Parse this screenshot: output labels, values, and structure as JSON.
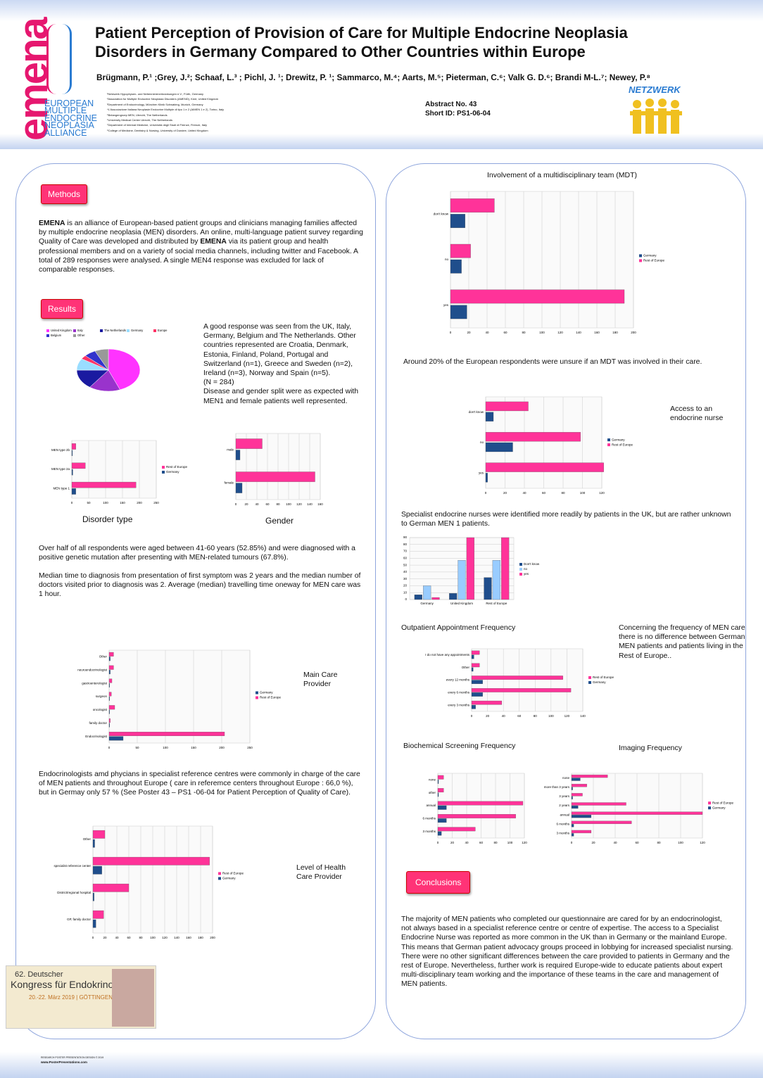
{
  "header": {
    "logo": "emena",
    "alliance": [
      "EUROPEAN",
      "MULTIPLE",
      "ENDOCRINE",
      "NEOPLASIA",
      "ALLIANCE"
    ],
    "title": [
      "Patient Perception of Provision of Care for Multiple Endocrine Neoplasia",
      "Disorders in Germany Compared to Other Countries within Europe"
    ],
    "authors": "Brügmann, P.¹ ;Grey, J.²; Schaaf, L.³ ; Pichl, J. ¹; Drewitz, P. ¹; Sammarco, M.⁴; Aarts, M.⁵; Pieterman, C.⁶; Valk G. D.⁶;  Brandi M-L.⁷; Newey, P.⁸",
    "affiliations": [
      "¹Netzwerk Hypophysen- und Nebennierenerkrankungen e.V., Fürth, Germany",
      "²Association for Multiple Endocrine Neoplasia Disorders (AMEND), Kent, United Kingdom",
      "³Department of Endocrinology, München Klinik Schwabing, Munich, Germany",
      "⁴L'Associazione Italiana Neoplasie Endocrine Multiple di tipo 1 e 2 (AIMEN 1 e 2), Torino, Italy",
      "⁵Belangengroep MEN, Utrecht, The Netherlands",
      "⁶University Medical Center Utrecht, The Netherlands",
      "⁷Department of Internal Medicine, Università degli Studi di Firenze, Firenze, Italy",
      "⁸College of Medicine, Dentistry & Nursing, University of Dundee, United Kingdom"
    ],
    "abstract": "Abstract No. 43",
    "short_id": "Short ID:   PS1-06-04",
    "netzwerk": "NETZWERK"
  },
  "methods": {
    "heading": "Methods",
    "text": [
      "EMENA",
      " is an alliance of European-based patient groups and clinicians managing families affected by multiple endocrine neoplasia (MEN) disorders.  An online, multi-language patient survey regarding Quality of Care was developed and distributed by ",
      "EMENA",
      " via its patient group and health professional members and on a variety of social media channels, including twitter and Facebook.  A total of 289 responses were analysed.  A single MEN4 response was excluded for lack of comparable responses."
    ]
  },
  "results": {
    "heading": "Results",
    "response_text": [
      "A good response  was seen from the UK, Italy, Germany, Belgium and The Netherlands.  Other countries represented are Croatia, Denmark, Estonia, Finland, Poland, Portugal and Switzerland (n=1), Greece and Sweden (n=2), Ireland (n=3), Norway and Spain (n=5).",
      "(N = 284)",
      "Disease and gender split were as expected with MEN1 and female patients well represented."
    ],
    "age_text": "Over half of all respondents were aged between 41-60 years (52.85%) and were diagnosed with a positive genetic mutation after presenting with MEN-related tumours (67.8%).",
    "diagnosis_text": "Median time to diagnosis from presentation of first symptom was 2 years and the median number of doctors visited prior to diagnosis was 2.  Average (median) travelling time oneway for MEN care was 1 hour.",
    "provider_text": "Endocrinologists amd phycians in  specialist reference centres were commonly in charge of the care of MEN patients and throughout Europe ( care in referemce centers throughout Europe  : 66,0 %), but in Germay only 57 %  (See Poster 43 – PS1 -06-04 for Patient Perception of Quality of Care).",
    "mdt_text": "Around 20% of  the European respondents were unsure if an MDT was involved in their care.",
    "nurse_text": "Specialist endocrine nurses were identified more readily by patients in the UK, but are rather unknown to German MEN 1 patients.",
    "frequency_text": "Concerning the frequency of MEN care  there is no difference between German MEN patients and patients living in the Rest of Europe.."
  },
  "charts": {
    "pie": {
      "type": "pie",
      "categories": [
        "United Kingdom",
        "Italy",
        "The Netherlands",
        "Germany",
        "Europe",
        "Belgium",
        "Other"
      ],
      "values": [
        44,
        16,
        15,
        9,
        3,
        6,
        7
      ],
      "colors": [
        "#ff33ff",
        "#9933cc",
        "#1a1aa0",
        "#99ddff",
        "#ff3366",
        "#3333cc",
        "#999999"
      ]
    },
    "disorder": {
      "type": "hbar",
      "title": "Disorder type",
      "categories": [
        "MEN type 1",
        "MEN type 2a",
        "MEN type 2b"
      ],
      "series": [
        {
          "name": "Rest of Europe",
          "color": "#ff3399",
          "values": [
            190,
            40,
            12
          ]
        },
        {
          "name": "Germany",
          "color": "#1f4e8c",
          "values": [
            12,
            3,
            2
          ]
        }
      ],
      "xlim": [
        0,
        250
      ],
      "xticks": [
        0,
        50,
        100,
        150,
        200,
        250
      ]
    },
    "gender": {
      "type": "hbar",
      "title": "Gender",
      "categories": [
        "female",
        "male"
      ],
      "series": [
        {
          "name": "Rest of Europe",
          "color": "#ff3399",
          "values": [
            150,
            50
          ]
        },
        {
          "name": "Germany",
          "color": "#1f4e8c",
          "values": [
            12,
            8
          ]
        }
      ],
      "xlim": [
        0,
        160
      ],
      "xticks": [
        0,
        20,
        40,
        60,
        80,
        100,
        120,
        140,
        160
      ]
    },
    "main_care": {
      "type": "hbar",
      "title": "Main Care Provider",
      "categories": [
        "Endocrinologist",
        "family doctor",
        "oncologist",
        "surgeon",
        "gastroenterologist",
        "neuroendocrinologist",
        "Other"
      ],
      "series": [
        {
          "name": "Germany",
          "color": "#1f4e8c",
          "values": [
            25,
            1,
            1,
            1,
            1,
            2,
            2
          ]
        },
        {
          "name": "Rest of Europe",
          "color": "#ff3399",
          "values": [
            205,
            2,
            10,
            4,
            5,
            8,
            8
          ]
        }
      ],
      "xlim": [
        0,
        250
      ],
      "xticks": [
        0,
        50,
        100,
        150,
        200,
        250
      ]
    },
    "level": {
      "type": "hbar",
      "title": "Level of Health Care Provider",
      "categories": [
        "GP, family doctor",
        "District/regional hospital",
        "specialist reference center",
        "Other"
      ],
      "series": [
        {
          "name": "Rest of Europe",
          "color": "#ff3399",
          "values": [
            18,
            60,
            195,
            20
          ]
        },
        {
          "name": "Germany",
          "color": "#1f4e8c",
          "values": [
            5,
            2,
            15,
            3
          ]
        }
      ],
      "xlim": [
        0,
        200
      ],
      "xticks": [
        0,
        20,
        40,
        60,
        80,
        100,
        120,
        140,
        160,
        180,
        200
      ]
    },
    "mdt": {
      "type": "hbar",
      "title": "Involvement of a multidisciplinary team (MDT)",
      "categories": [
        "yes",
        "no",
        "don't know"
      ],
      "series": [
        {
          "name": "Germany",
          "color": "#1f4e8c",
          "values": [
            18,
            12,
            16
          ]
        },
        {
          "name": "Rest of Europe",
          "color": "#ff3399",
          "values": [
            190,
            22,
            48
          ]
        }
      ],
      "xlim": [
        0,
        200
      ],
      "xticks": [
        0,
        20,
        40,
        60,
        80,
        100,
        120,
        140,
        160,
        180,
        200
      ]
    },
    "nurse": {
      "type": "hbar",
      "title": "Access to an endocrine nurse",
      "categories": [
        "yes",
        "no",
        "don't know"
      ],
      "series": [
        {
          "name": "Germany",
          "color": "#1f4e8c",
          "values": [
            2,
            28,
            8
          ]
        },
        {
          "name": "Rest of Europe",
          "color": "#ff3399",
          "values": [
            122,
            98,
            44
          ]
        }
      ],
      "xlim": [
        0,
        120
      ],
      "xticks": [
        0,
        20,
        40,
        60,
        80,
        100,
        120
      ]
    },
    "nurse_country": {
      "type": "vbar",
      "categories": [
        "Germany",
        "United Kingdom",
        "Rest of Europe"
      ],
      "series": [
        {
          "name": "Don't know",
          "color": "#1f4e8c",
          "values": [
            7,
            9,
            32
          ]
        },
        {
          "name": "no",
          "color": "#99ccff",
          "values": [
            20,
            57,
            57
          ]
        },
        {
          "name": "yes",
          "color": "#ff3399",
          "values": [
            3,
            90,
            90
          ]
        }
      ],
      "ylim": [
        0,
        90
      ],
      "yticks": [
        0,
        10,
        20,
        30,
        40,
        50,
        60,
        70,
        80,
        90
      ]
    },
    "outpatient": {
      "type": "hbar",
      "title": "Outpatient Appointment Frequency",
      "categories": [
        "every 3 months",
        "every 6 months",
        "every 12 months",
        "Other",
        "I do not have any appointments"
      ],
      "series": [
        {
          "name": "Rest of Europe",
          "color": "#ff3399",
          "values": [
            38,
            125,
            115,
            10,
            10
          ]
        },
        {
          "name": "Germany",
          "color": "#1f4e8c",
          "values": [
            5,
            14,
            14,
            2,
            3
          ]
        }
      ],
      "xlim": [
        0,
        140
      ],
      "xticks": [
        0,
        20,
        40,
        60,
        80,
        100,
        120,
        140
      ]
    },
    "biochemical": {
      "type": "hbar",
      "title": "Biochemical Screening Frequency",
      "categories": [
        "3 months",
        "6 months",
        "annual",
        "other",
        "none"
      ],
      "series": [
        {
          "name": "Rest of Europe",
          "color": "#ff3399",
          "values": [
            52,
            108,
            118,
            8,
            8
          ]
        },
        {
          "name": "Germany",
          "color": "#1f4e8c",
          "values": [
            5,
            12,
            12,
            1,
            1
          ]
        }
      ],
      "xlim": [
        0,
        120
      ],
      "xticks": [
        0,
        20,
        40,
        60,
        80,
        100,
        120
      ]
    },
    "imaging": {
      "type": "hbar",
      "title": "Imaging Frequency",
      "categories": [
        "3 months",
        "6 months",
        "annual",
        "2 years",
        "3 years",
        "more than 3 years",
        "none"
      ],
      "series": [
        {
          "name": "Rest of Europe",
          "color": "#ff3399",
          "values": [
            18,
            55,
            120,
            50,
            10,
            14,
            33
          ]
        },
        {
          "name": "Germany",
          "color": "#1f4e8c",
          "values": [
            2,
            2,
            18,
            6,
            1,
            1,
            8
          ]
        }
      ],
      "xlim": [
        0,
        120
      ],
      "xticks": [
        0,
        20,
        40,
        60,
        80,
        100,
        120
      ]
    }
  },
  "conclusions": {
    "heading": "Conclusions",
    "text": "The majority of MEN patients who completed our questionnaire are cared for by an endocrinologist, not always based in a specialist reference centre or centre of expertise.  The access to a Specialist Endocrine Nurse was reported as more common in the UK than in Germany or the mainland Europe. This means that German patient advocacy groups proceed in lobbying for increased specialist nursing. There were no other significant differences between the care provided to patients in Germany and the rest of Europe.  Nevertheless, further work is required Europe-wide to educate patients about expert multi-disciplinary team working and the importance of these teams in the care and management of MEN patients."
  },
  "congress": {
    "line1": "62. Deutscher",
    "line2": "Kongress für Endokrinologie",
    "line3": "20.-22. März 2019 | GÖTTINGEN"
  },
  "footer": {
    "line1": "RESEARCH POSTER PRESENTATION DESIGN © 2019",
    "line2": "www.PosterPresentations.com"
  }
}
